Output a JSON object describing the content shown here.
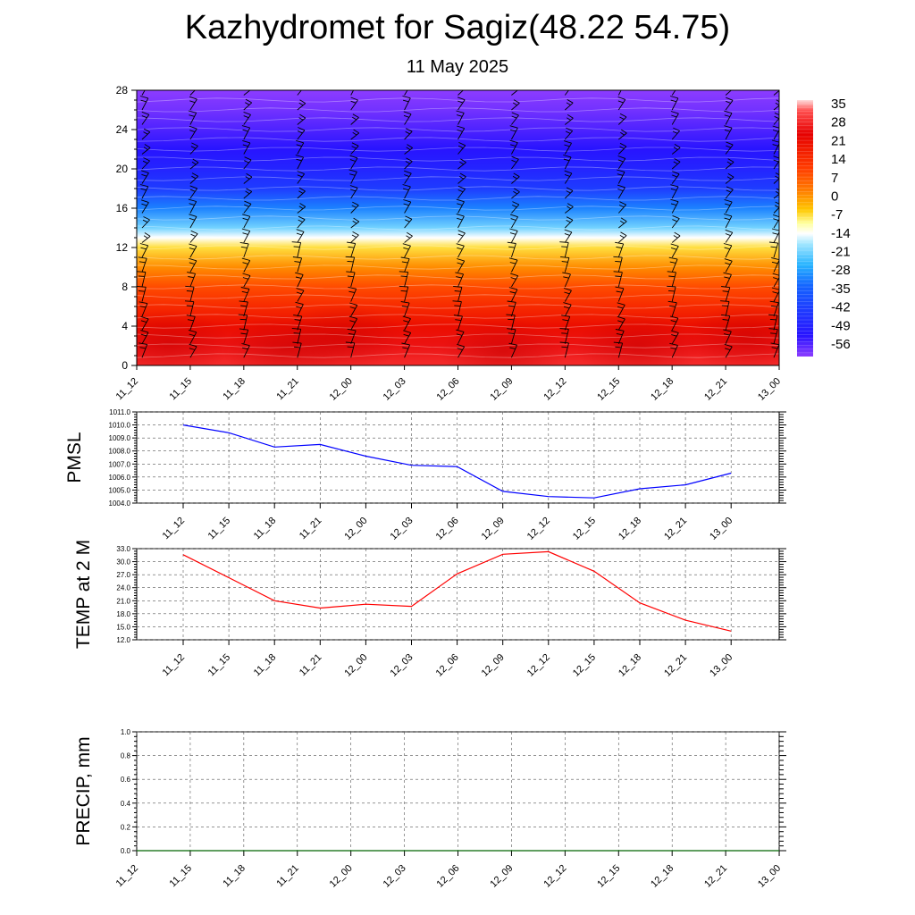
{
  "header": {
    "title": "Kazhydromet for Sagiz(48.22 54.75)",
    "date": "11 May 2025"
  },
  "colors": {
    "pmsl_line": "#0000ff",
    "temp_line": "#ff0000",
    "precip_line": "#006400"
  },
  "chart_data": [
    {
      "type": "heatmap",
      "name": "vertical-profile",
      "x": [
        "11_12",
        "11_15",
        "11_18",
        "11_21",
        "12_00",
        "12_03",
        "12_06",
        "12_09",
        "12_12",
        "12_15",
        "12_18",
        "12_21",
        "13_00"
      ],
      "yticks": [
        0,
        4,
        8,
        12,
        16,
        20,
        24,
        28
      ],
      "ylim": [
        0,
        28
      ],
      "colorbar": {
        "labels": [
          35,
          28,
          21,
          14,
          7,
          0,
          -7,
          -14,
          -21,
          -28,
          -35,
          -42,
          -49,
          -56
        ],
        "range": [
          -60,
          38
        ],
        "stops": [
          {
            "v": 38,
            "c": "#ffdcdc"
          },
          {
            "v": 34,
            "c": "#ff5050"
          },
          {
            "v": 25,
            "c": "#e60000"
          },
          {
            "v": 12,
            "c": "#ff3c00"
          },
          {
            "v": 4,
            "c": "#ff7800"
          },
          {
            "v": -4,
            "c": "#ffc800"
          },
          {
            "v": -9,
            "c": "#ffff9c"
          },
          {
            "v": -13,
            "c": "#ffffff"
          },
          {
            "v": -17,
            "c": "#a0e6ff"
          },
          {
            "v": -25,
            "c": "#28b4ff"
          },
          {
            "v": -33,
            "c": "#1464ff"
          },
          {
            "v": -42,
            "c": "#1e3cff"
          },
          {
            "v": -52,
            "c": "#2814ff"
          },
          {
            "v": -60,
            "c": "#8c3cff"
          }
        ]
      },
      "profile": [
        {
          "h": 0,
          "t": 30
        },
        {
          "h": 2,
          "t": 27
        },
        {
          "h": 4,
          "t": 22
        },
        {
          "h": 6,
          "t": 16
        },
        {
          "h": 8,
          "t": 10
        },
        {
          "h": 10,
          "t": 2
        },
        {
          "h": 12,
          "t": -6
        },
        {
          "h": 13,
          "t": -13
        },
        {
          "h": 14,
          "t": -20
        },
        {
          "h": 16,
          "t": -30
        },
        {
          "h": 18,
          "t": -42
        },
        {
          "h": 20,
          "t": -48
        },
        {
          "h": 22,
          "t": -52
        },
        {
          "h": 24,
          "t": -55
        },
        {
          "h": 26,
          "t": -58
        },
        {
          "h": 28,
          "t": -60
        }
      ],
      "barb_levels": [
        0.8,
        2.2,
        3.6,
        5.0,
        6.5,
        8.0,
        9.5,
        11.0,
        12.5,
        14.0,
        15.5,
        17.0,
        18.5,
        20.0,
        21.5,
        23.0,
        24.5,
        26.0,
        27.5
      ]
    },
    {
      "type": "line",
      "name": "pmsl",
      "ylabel": "PMSL",
      "x": [
        "11_12",
        "11_15",
        "11_18",
        "11_21",
        "12_00",
        "12_03",
        "12_06",
        "12_09",
        "12_12",
        "12_15",
        "12_18",
        "12_21",
        "13_00"
      ],
      "values": [
        1010.0,
        1009.4,
        1008.3,
        1008.5,
        1007.6,
        1006.9,
        1006.8,
        1004.9,
        1004.5,
        1004.4,
        1005.1,
        1005.4,
        1006.3
      ],
      "ylim": [
        1004.0,
        1011.0
      ],
      "yticks": [
        "1004.0",
        "1005.0",
        "1006.0",
        "1007.0",
        "1008.0",
        "1009.0",
        "1010.0",
        "1011.0"
      ]
    },
    {
      "type": "line",
      "name": "temp",
      "ylabel": "TEMP at 2 M",
      "x": [
        "11_12",
        "11_15",
        "11_18",
        "11_21",
        "12_00",
        "12_03",
        "12_06",
        "12_09",
        "12_12",
        "12_15",
        "12_18",
        "12_21",
        "13_00"
      ],
      "values": [
        31.6,
        26.3,
        21.0,
        19.3,
        20.2,
        19.7,
        27.2,
        31.7,
        32.3,
        27.8,
        20.5,
        16.5,
        14.0
      ],
      "ylim": [
        12.0,
        33.0
      ],
      "yticks": [
        "12.0",
        "15.0",
        "18.0",
        "21.0",
        "24.0",
        "27.0",
        "30.0",
        "33.0"
      ]
    },
    {
      "type": "line",
      "name": "precip",
      "ylabel": "PRECIP, mm",
      "x": [
        "11_12",
        "11_15",
        "11_18",
        "11_21",
        "12_00",
        "12_03",
        "12_06",
        "12_09",
        "12_12",
        "12_15",
        "12_18",
        "12_21",
        "13_00"
      ],
      "values": [
        0,
        0,
        0,
        0,
        0,
        0,
        0,
        0,
        0,
        0,
        0,
        0,
        0
      ],
      "ylim": [
        0.0,
        1.0
      ],
      "yticks": [
        "0.0",
        "0.2",
        "0.4",
        "0.6",
        "0.8",
        "1.0"
      ]
    }
  ]
}
